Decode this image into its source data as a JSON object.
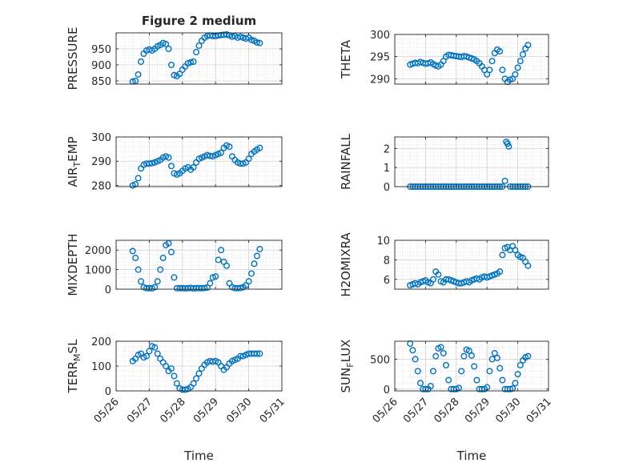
{
  "figure_title": "Figure 2 medium",
  "colors": {
    "marker": "#0072bd",
    "grid": "#d0d0d0",
    "axis": "#262626"
  },
  "marker_shape": "open-circle",
  "chart_data": [
    {
      "type": "scatter",
      "ylabel": "PRESSURE",
      "title": "Figure 2 medium",
      "xlim": [
        "05/26",
        "05/31"
      ],
      "ylim": [
        840,
        1000
      ],
      "yticks": [
        850,
        900,
        950
      ],
      "grid": true,
      "x": [
        "05/26 12:00",
        "05/26 14:00",
        "05/26 16:00",
        "05/26 18:00",
        "05/26 20:00",
        "05/26 22:00",
        "05/27 00:00",
        "05/27 02:00",
        "05/27 04:00",
        "05/27 06:00",
        "05/27 08:00",
        "05/27 10:00",
        "05/27 12:00",
        "05/27 14:00",
        "05/27 16:00",
        "05/27 18:00",
        "05/27 20:00",
        "05/27 22:00",
        "05/28 00:00",
        "05/28 02:00",
        "05/28 04:00",
        "05/28 06:00",
        "05/28 08:00",
        "05/28 10:00",
        "05/28 12:00",
        "05/28 14:00",
        "05/28 16:00",
        "05/28 18:00",
        "05/28 20:00",
        "05/28 22:00",
        "05/29 00:00",
        "05/29 02:00",
        "05/29 04:00",
        "05/29 06:00",
        "05/29 08:00",
        "05/29 10:00",
        "05/29 12:00",
        "05/29 14:00",
        "05/29 16:00",
        "05/29 18:00",
        "05/29 20:00",
        "05/29 22:00",
        "05/30 00:00",
        "05/30 02:00",
        "05/30 04:00",
        "05/30 06:00",
        "05/30 08:00"
      ],
      "y": [
        848,
        850,
        870,
        910,
        935,
        945,
        948,
        945,
        950,
        958,
        962,
        968,
        965,
        950,
        900,
        868,
        865,
        872,
        885,
        895,
        905,
        908,
        910,
        940,
        960,
        975,
        985,
        990,
        992,
        990,
        990,
        992,
        993,
        994,
        995,
        992,
        988,
        990,
        985,
        988,
        985,
        982,
        985,
        978,
        975,
        970,
        968
      ]
    },
    {
      "type": "scatter",
      "ylabel": "THETA",
      "xlim": [
        "05/26",
        "05/31"
      ],
      "ylim": [
        288.8,
        300
      ],
      "yticks": [
        290,
        295,
        300
      ],
      "grid": true,
      "x": [
        "05/26 12:00",
        "05/26 14:00",
        "05/26 16:00",
        "05/26 18:00",
        "05/26 20:00",
        "05/26 22:00",
        "05/27 00:00",
        "05/27 02:00",
        "05/27 04:00",
        "05/27 06:00",
        "05/27 08:00",
        "05/27 10:00",
        "05/27 12:00",
        "05/27 14:00",
        "05/27 16:00",
        "05/27 18:00",
        "05/27 20:00",
        "05/27 22:00",
        "05/28 00:00",
        "05/28 02:00",
        "05/28 04:00",
        "05/28 06:00",
        "05/28 08:00",
        "05/28 10:00",
        "05/28 12:00",
        "05/28 14:00",
        "05/28 16:00",
        "05/28 18:00",
        "05/28 20:00",
        "05/28 22:00",
        "05/29 00:00",
        "05/29 02:00",
        "05/29 04:00",
        "05/29 06:00",
        "05/29 08:00",
        "05/29 10:00",
        "05/29 12:00",
        "05/29 14:00",
        "05/29 16:00",
        "05/29 18:00",
        "05/29 20:00",
        "05/29 22:00",
        "05/30 00:00",
        "05/30 02:00",
        "05/30 04:00",
        "05/30 06:00",
        "05/30 08:00"
      ],
      "y": [
        293.2,
        293.4,
        293.6,
        293.5,
        293.8,
        293.6,
        293.4,
        293.5,
        293.7,
        293.3,
        293.0,
        292.8,
        293.2,
        294.0,
        295.0,
        295.4,
        295.3,
        295.2,
        295.1,
        295.0,
        294.9,
        295.1,
        295.0,
        294.8,
        294.6,
        294.4,
        294.0,
        293.5,
        292.8,
        292.0,
        291.0,
        292.0,
        294.0,
        295.8,
        296.6,
        296.2,
        292.0,
        290.0,
        289.3,
        289.8,
        290.0,
        291.0,
        292.5,
        294.0,
        295.5,
        296.8,
        297.6
      ]
    },
    {
      "type": "scatter",
      "ylabel": "AIR_TEMP",
      "xlim": [
        "05/26",
        "05/31"
      ],
      "ylim": [
        279.5,
        300
      ],
      "yticks": [
        280,
        290,
        300
      ],
      "grid": true,
      "x": [
        "05/26 12:00",
        "05/26 14:00",
        "05/26 16:00",
        "05/26 18:00",
        "05/26 20:00",
        "05/26 22:00",
        "05/27 00:00",
        "05/27 02:00",
        "05/27 04:00",
        "05/27 06:00",
        "05/27 08:00",
        "05/27 10:00",
        "05/27 12:00",
        "05/27 14:00",
        "05/27 16:00",
        "05/27 18:00",
        "05/27 20:00",
        "05/27 22:00",
        "05/28 00:00",
        "05/28 02:00",
        "05/28 04:00",
        "05/28 06:00",
        "05/28 08:00",
        "05/28 10:00",
        "05/28 12:00",
        "05/28 14:00",
        "05/28 16:00",
        "05/28 18:00",
        "05/28 20:00",
        "05/28 22:00",
        "05/29 00:00",
        "05/29 02:00",
        "05/29 04:00",
        "05/29 06:00",
        "05/29 08:00",
        "05/29 10:00",
        "05/29 12:00",
        "05/29 14:00",
        "05/29 16:00",
        "05/29 18:00",
        "05/29 20:00",
        "05/29 22:00",
        "05/30 00:00",
        "05/30 02:00",
        "05/30 04:00",
        "05/30 06:00",
        "05/30 08:00"
      ],
      "y": [
        280.0,
        280.5,
        283.0,
        287.0,
        288.5,
        289.0,
        289.0,
        289.2,
        289.5,
        290.0,
        290.5,
        291.5,
        292.0,
        291.5,
        288.0,
        285.0,
        284.5,
        285.0,
        286.0,
        287.0,
        287.5,
        286.5,
        287.5,
        289.5,
        291.0,
        291.5,
        292.0,
        292.5,
        292.2,
        292.0,
        292.5,
        293.0,
        293.5,
        295.5,
        296.5,
        296.0,
        292.0,
        290.5,
        289.5,
        289.0,
        289.0,
        289.5,
        291.0,
        293.0,
        294.0,
        294.8,
        295.5
      ]
    },
    {
      "type": "scatter",
      "ylabel": "RAINFALL",
      "xlim": [
        "05/26",
        "05/31"
      ],
      "ylim": [
        0,
        2.6
      ],
      "yticks": [
        0,
        1,
        2
      ],
      "grid": true,
      "x": [
        "05/26 12:00",
        "05/26 14:00",
        "05/26 16:00",
        "05/26 18:00",
        "05/26 20:00",
        "05/26 22:00",
        "05/27 00:00",
        "05/27 02:00",
        "05/27 04:00",
        "05/27 06:00",
        "05/27 08:00",
        "05/27 10:00",
        "05/27 12:00",
        "05/27 14:00",
        "05/27 16:00",
        "05/27 18:00",
        "05/27 20:00",
        "05/27 22:00",
        "05/28 00:00",
        "05/28 02:00",
        "05/28 04:00",
        "05/28 06:00",
        "05/28 08:00",
        "05/28 10:00",
        "05/28 12:00",
        "05/28 14:00",
        "05/28 16:00",
        "05/28 18:00",
        "05/28 20:00",
        "05/28 22:00",
        "05/29 00:00",
        "05/29 02:00",
        "05/29 04:00",
        "05/29 06:00",
        "05/29 08:00",
        "05/29 10:00",
        "05/29 12:00",
        "05/29 14:00",
        "05/29 15:00",
        "05/29 16:00",
        "05/29 17:00",
        "05/29 18:00",
        "05/29 20:00",
        "05/29 22:00",
        "05/30 00:00",
        "05/30 02:00",
        "05/30 04:00",
        "05/30 06:00",
        "05/30 08:00"
      ],
      "y": [
        0,
        0,
        0,
        0,
        0,
        0,
        0,
        0,
        0,
        0,
        0,
        0,
        0,
        0,
        0,
        0,
        0,
        0,
        0,
        0,
        0,
        0,
        0,
        0,
        0,
        0,
        0,
        0,
        0,
        0,
        0,
        0,
        0,
        0,
        0,
        0,
        0,
        0.3,
        2.35,
        2.25,
        2.1,
        0,
        0,
        0,
        0,
        0,
        0,
        0,
        0
      ]
    },
    {
      "type": "scatter",
      "ylabel": "MIXDEPTH",
      "xlim": [
        "05/26",
        "05/31"
      ],
      "ylim": [
        0,
        2500
      ],
      "yticks": [
        0,
        1000,
        2000
      ],
      "grid": true,
      "x": [
        "05/26 12:00",
        "05/26 14:00",
        "05/26 16:00",
        "05/26 18:00",
        "05/26 20:00",
        "05/26 22:00",
        "05/27 00:00",
        "05/27 02:00",
        "05/27 04:00",
        "05/27 06:00",
        "05/27 08:00",
        "05/27 10:00",
        "05/27 12:00",
        "05/27 14:00",
        "05/27 16:00",
        "05/27 18:00",
        "05/27 20:00",
        "05/27 22:00",
        "05/28 00:00",
        "05/28 02:00",
        "05/28 04:00",
        "05/28 06:00",
        "05/28 08:00",
        "05/28 10:00",
        "05/28 12:00",
        "05/28 14:00",
        "05/28 16:00",
        "05/28 18:00",
        "05/28 20:00",
        "05/28 22:00",
        "05/29 00:00",
        "05/29 02:00",
        "05/29 04:00",
        "05/29 06:00",
        "05/29 08:00",
        "05/29 10:00",
        "05/29 12:00",
        "05/29 14:00",
        "05/29 16:00",
        "05/29 18:00",
        "05/29 20:00",
        "05/29 22:00",
        "05/30 00:00",
        "05/30 02:00",
        "05/30 04:00",
        "05/30 06:00",
        "05/30 08:00"
      ],
      "y": [
        1950,
        1600,
        1000,
        400,
        100,
        50,
        50,
        40,
        100,
        400,
        1000,
        1600,
        2250,
        2350,
        1900,
        600,
        50,
        50,
        50,
        40,
        50,
        60,
        40,
        50,
        50,
        50,
        60,
        80,
        300,
        600,
        650,
        1500,
        2000,
        1400,
        1200,
        300,
        100,
        50,
        50,
        60,
        100,
        200,
        400,
        800,
        1300,
        1700,
        2050
      ]
    },
    {
      "type": "scatter",
      "ylabel": "H2OMIXRA",
      "xlim": [
        "05/26",
        "05/31"
      ],
      "ylim": [
        5,
        10
      ],
      "yticks": [
        6,
        8,
        10
      ],
      "grid": true,
      "x": [
        "05/26 12:00",
        "05/26 14:00",
        "05/26 16:00",
        "05/26 18:00",
        "05/26 20:00",
        "05/26 22:00",
        "05/27 00:00",
        "05/27 02:00",
        "05/27 04:00",
        "05/27 06:00",
        "05/27 08:00",
        "05/27 10:00",
        "05/27 12:00",
        "05/27 14:00",
        "05/27 16:00",
        "05/27 18:00",
        "05/27 20:00",
        "05/27 22:00",
        "05/28 00:00",
        "05/28 02:00",
        "05/28 04:00",
        "05/28 06:00",
        "05/28 08:00",
        "05/28 10:00",
        "05/28 12:00",
        "05/28 14:00",
        "05/28 16:00",
        "05/28 18:00",
        "05/28 20:00",
        "05/28 22:00",
        "05/29 00:00",
        "05/29 02:00",
        "05/29 04:00",
        "05/29 06:00",
        "05/29 08:00",
        "05/29 10:00",
        "05/29 12:00",
        "05/29 14:00",
        "05/29 16:00",
        "05/29 18:00",
        "05/29 20:00",
        "05/29 22:00",
        "05/30 00:00",
        "05/30 02:00",
        "05/30 04:00",
        "05/30 06:00",
        "05/30 08:00"
      ],
      "y": [
        5.4,
        5.5,
        5.6,
        5.5,
        5.7,
        5.8,
        5.9,
        5.7,
        5.6,
        6.0,
        6.8,
        6.5,
        5.8,
        5.7,
        6.0,
        6.0,
        5.9,
        5.8,
        5.7,
        5.6,
        5.6,
        5.7,
        5.8,
        5.7,
        5.9,
        6.0,
        6.1,
        6.0,
        6.2,
        6.3,
        6.2,
        6.3,
        6.4,
        6.5,
        6.6,
        6.8,
        8.5,
        9.2,
        9.3,
        9.0,
        9.4,
        9.0,
        8.5,
        8.3,
        8.2,
        7.8,
        7.4
      ]
    },
    {
      "type": "scatter",
      "ylabel": "TERR_MSL",
      "xlabel": "Time",
      "xlim": [
        "05/26",
        "05/31"
      ],
      "ylim": [
        0,
        200
      ],
      "yticks": [
        0,
        100,
        200
      ],
      "xticks": [
        "05/26",
        "05/27",
        "05/28",
        "05/29",
        "05/30",
        "05/31"
      ],
      "grid": true,
      "x": [
        "05/26 12:00",
        "05/26 14:00",
        "05/26 16:00",
        "05/26 18:00",
        "05/26 20:00",
        "05/26 22:00",
        "05/27 00:00",
        "05/27 02:00",
        "05/27 04:00",
        "05/27 06:00",
        "05/27 08:00",
        "05/27 10:00",
        "05/27 12:00",
        "05/27 14:00",
        "05/27 16:00",
        "05/27 18:00",
        "05/27 20:00",
        "05/27 22:00",
        "05/28 00:00",
        "05/28 02:00",
        "05/28 04:00",
        "05/28 06:00",
        "05/28 08:00",
        "05/28 10:00",
        "05/28 12:00",
        "05/28 14:00",
        "05/28 16:00",
        "05/28 18:00",
        "05/28 20:00",
        "05/28 22:00",
        "05/29 00:00",
        "05/29 02:00",
        "05/29 04:00",
        "05/29 06:00",
        "05/29 08:00",
        "05/29 10:00",
        "05/29 12:00",
        "05/29 14:00",
        "05/29 16:00",
        "05/29 18:00",
        "05/29 20:00",
        "05/29 22:00",
        "05/30 00:00",
        "05/30 02:00",
        "05/30 04:00",
        "05/30 06:00",
        "05/30 08:00"
      ],
      "y": [
        120,
        130,
        145,
        150,
        135,
        140,
        160,
        180,
        175,
        150,
        130,
        115,
        100,
        80,
        90,
        60,
        30,
        10,
        5,
        5,
        8,
        15,
        30,
        50,
        70,
        90,
        105,
        115,
        120,
        118,
        120,
        115,
        100,
        85,
        95,
        110,
        120,
        125,
        130,
        140,
        140,
        145,
        150,
        150,
        150,
        150,
        150
      ]
    },
    {
      "type": "scatter",
      "ylabel": "SUN_FLUX",
      "xlabel": "Time",
      "xlim": [
        "05/26",
        "05/31"
      ],
      "ylim": [
        -30,
        800
      ],
      "yticks": [
        0,
        500
      ],
      "xticks": [
        "05/26",
        "05/27",
        "05/28",
        "05/29",
        "05/30",
        "05/31"
      ],
      "grid": true,
      "x": [
        "05/26 12:00",
        "05/26 14:00",
        "05/26 16:00",
        "05/26 18:00",
        "05/26 20:00",
        "05/26 22:00",
        "05/27 00:00",
        "05/27 02:00",
        "05/27 04:00",
        "05/27 06:00",
        "05/27 08:00",
        "05/27 10:00",
        "05/27 12:00",
        "05/27 14:00",
        "05/27 16:00",
        "05/27 18:00",
        "05/27 20:00",
        "05/27 22:00",
        "05/28 00:00",
        "05/28 02:00",
        "05/28 04:00",
        "05/28 06:00",
        "05/28 08:00",
        "05/28 10:00",
        "05/28 12:00",
        "05/28 14:00",
        "05/28 16:00",
        "05/28 18:00",
        "05/28 20:00",
        "05/28 22:00",
        "05/29 00:00",
        "05/29 02:00",
        "05/29 04:00",
        "05/29 06:00",
        "05/29 08:00",
        "05/29 10:00",
        "05/29 12:00",
        "05/29 14:00",
        "05/29 16:00",
        "05/29 18:00",
        "05/29 20:00",
        "05/29 22:00",
        "05/30 00:00",
        "05/30 02:00",
        "05/30 04:00",
        "05/30 06:00",
        "05/30 08:00"
      ],
      "y": [
        760,
        650,
        500,
        300,
        100,
        0,
        0,
        0,
        50,
        300,
        550,
        680,
        700,
        600,
        400,
        150,
        0,
        0,
        0,
        20,
        300,
        550,
        660,
        640,
        560,
        380,
        150,
        0,
        0,
        0,
        30,
        300,
        500,
        600,
        520,
        350,
        150,
        0,
        0,
        0,
        10,
        100,
        250,
        400,
        480,
        530,
        550
      ]
    }
  ]
}
